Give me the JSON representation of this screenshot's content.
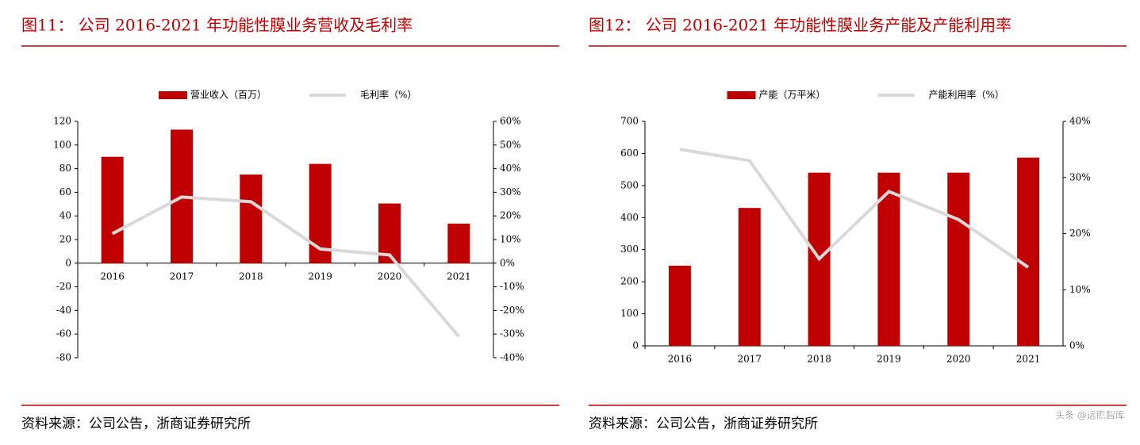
{
  "chart_data": [
    {
      "type": "bar_line",
      "title": "图11：  公司 2016-2021 年功能性膜业务营收及毛利率",
      "categories": [
        "2016",
        "2017",
        "2018",
        "2019",
        "2020",
        "2021"
      ],
      "series": [
        {
          "name": "营业收入（百万）",
          "type": "bar",
          "color": "#c00000",
          "values": [
            90,
            113,
            75,
            84,
            50.5,
            33.5
          ]
        },
        {
          "name": "毛利率（%）",
          "type": "line",
          "axis": "y2",
          "color": "#d9d9d9",
          "values": [
            12.5,
            28,
            26,
            6,
            3.5,
            -31
          ]
        }
      ],
      "ylim": [
        -80,
        120
      ],
      "yticks": [
        -80,
        -60,
        -40,
        -20,
        0,
        20,
        40,
        60,
        80,
        100,
        120
      ],
      "y2lim": [
        -40,
        60
      ],
      "y2ticks": [
        {
          "value": -40,
          "label": "-40%"
        },
        {
          "value": -30,
          "label": "-30%"
        },
        {
          "value": -20,
          "label": "-20%"
        },
        {
          "value": -10,
          "label": "-10%"
        },
        {
          "value": 0,
          "label": "0%"
        },
        {
          "value": 10,
          "label": "10%"
        },
        {
          "value": 20,
          "label": "20%"
        },
        {
          "value": 30,
          "label": "30%"
        },
        {
          "value": 40,
          "label": "40%"
        },
        {
          "value": 50,
          "label": "50%"
        },
        {
          "value": 60,
          "label": "60%"
        }
      ],
      "legend": "top",
      "source": "资料来源：公司公告，浙商证券研究所"
    },
    {
      "type": "bar_line",
      "title": "图12：  公司 2016-2021 年功能性膜业务产能及产能利用率",
      "categories": [
        "2016",
        "2017",
        "2018",
        "2019",
        "2020",
        "2021"
      ],
      "series": [
        {
          "name": "产能（万平米）",
          "type": "bar",
          "color": "#c00000",
          "values": [
            250,
            430,
            540,
            540,
            540,
            587
          ]
        },
        {
          "name": "产能利用率（%）",
          "type": "line",
          "axis": "y2",
          "color": "#d9d9d9",
          "values": [
            35,
            33,
            15.5,
            27.5,
            22.5,
            14
          ]
        }
      ],
      "ylim": [
        0,
        700
      ],
      "yticks": [
        0,
        100,
        200,
        300,
        400,
        500,
        600,
        700
      ],
      "y2lim": [
        0,
        40
      ],
      "y2ticks": [
        {
          "value": 0,
          "label": "0%"
        },
        {
          "value": 10,
          "label": "10%"
        },
        {
          "value": 20,
          "label": "20%"
        },
        {
          "value": 30,
          "label": "30%"
        },
        {
          "value": 40,
          "label": "40%"
        }
      ],
      "legend": "top",
      "source": "资料来源：公司公告，浙商证券研究所"
    }
  ],
  "watermark": "头条 @远瞻智库"
}
